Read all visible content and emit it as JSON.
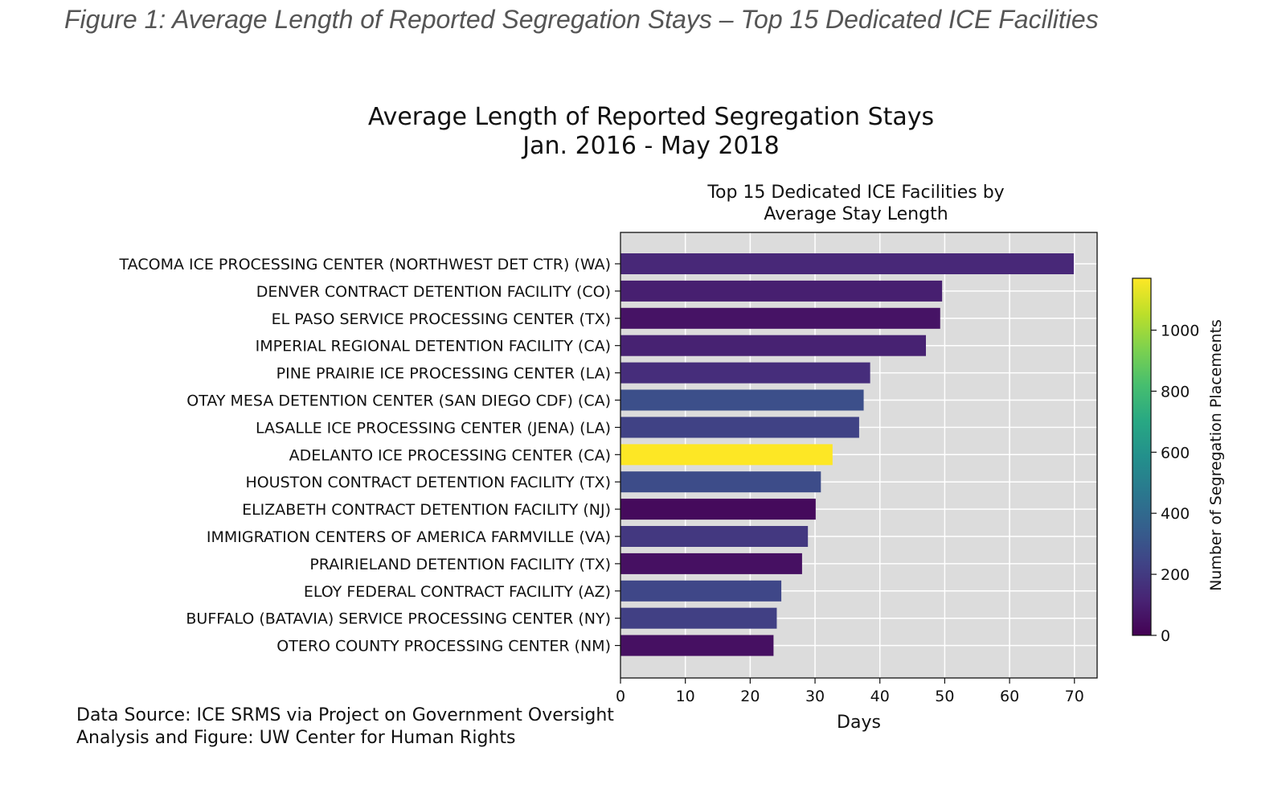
{
  "figure_caption": "Figure 1: Average Length of Reported Segregation Stays – Top 15 Dedicated ICE Facilities",
  "chart_title_line1": "Average Length of Reported Segregation Stays",
  "chart_title_line2": "Jan. 2016 - May 2018",
  "subtitle_line1": "Top 15 Dedicated ICE Facilities by",
  "subtitle_line2": "Average Stay Length",
  "source_line1": "Data Source: ICE SRMS via Project on Government Oversight",
  "source_line2": "Analysis and Figure: UW Center for Human Rights",
  "chart_data": {
    "type": "bar",
    "orientation": "horizontal",
    "xlabel": "Days",
    "xlim": [
      0,
      73.5
    ],
    "xticks": [
      0,
      10,
      20,
      30,
      40,
      50,
      60,
      70
    ],
    "grid": true,
    "colorbar": {
      "label": "Number of Segregation Placements",
      "range": [
        0,
        1170
      ],
      "ticks": [
        0,
        200,
        400,
        600,
        800,
        1000
      ],
      "colormap": "viridis"
    },
    "categories": [
      "TACOMA ICE PROCESSING CENTER (NORTHWEST DET CTR) (WA)",
      "DENVER CONTRACT DETENTION FACILITY (CO)",
      "EL PASO SERVICE PROCESSING CENTER (TX)",
      "IMPERIAL REGIONAL DETENTION FACILITY (CA)",
      "PINE PRAIRIE ICE PROCESSING CENTER (LA)",
      "OTAY MESA DETENTION CENTER (SAN DIEGO CDF) (CA)",
      "LASALLE ICE PROCESSING CENTER (JENA) (LA)",
      "ADELANTO ICE PROCESSING CENTER (CA)",
      "HOUSTON CONTRACT DETENTION FACILITY (TX)",
      "ELIZABETH CONTRACT DETENTION FACILITY (NJ)",
      "IMMIGRATION CENTERS OF AMERICA FARMVILLE (VA)",
      "PRAIRIELAND DETENTION FACILITY (TX)",
      "ELOY FEDERAL CONTRACT FACILITY (AZ)",
      "BUFFALO (BATAVIA) SERVICE PROCESSING CENTER (NY)",
      "OTERO COUNTY PROCESSING CENTER (NM)"
    ],
    "values": [
      69.9,
      49.6,
      49.3,
      47.1,
      38.5,
      37.5,
      36.8,
      32.7,
      30.9,
      30.1,
      28.9,
      28.0,
      24.8,
      24.1,
      23.6
    ],
    "placements": [
      130,
      100,
      60,
      110,
      150,
      280,
      230,
      1170,
      270,
      30,
      190,
      50,
      250,
      220,
      50
    ]
  }
}
